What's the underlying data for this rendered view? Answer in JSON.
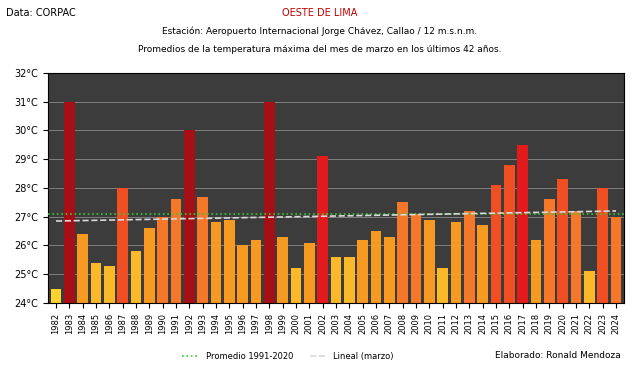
{
  "chart_data": {
    "type": "bar",
    "title": "OESTE DE LIMA",
    "subtitle": [
      "Estación: Aeropuerto Internacional Jorge Chávez, Callao / 12 m.s.n.m.",
      "Promedios de la temperatura máxima del mes de marzo en los últimos 42 años."
    ],
    "annotations": [
      "Data: CORPAC",
      "Elaborado: Ronald Mendoza"
    ],
    "categories": [
      "1982",
      "1983",
      "1984",
      "1985",
      "1986",
      "1987",
      "1988",
      "1989",
      "1990",
      "1991",
      "1992",
      "1993",
      "1994",
      "1995",
      "1996",
      "1997",
      "1998",
      "1999",
      "2000",
      "2001",
      "2002",
      "2003",
      "2004",
      "2005",
      "2006",
      "2007",
      "2008",
      "2009",
      "2010",
      "2011",
      "2012",
      "2013",
      "2014",
      "2015",
      "2016",
      "2017",
      "2018",
      "2019",
      "2020",
      "2021",
      "2022",
      "2023",
      "2024"
    ],
    "values": [
      24.5,
      31.0,
      26.4,
      25.4,
      25.3,
      28.0,
      25.8,
      26.6,
      27.0,
      27.6,
      30.0,
      27.7,
      26.8,
      26.9,
      26.0,
      26.2,
      31.0,
      26.3,
      25.2,
      26.1,
      29.1,
      25.6,
      25.6,
      26.2,
      26.5,
      26.3,
      27.5,
      27.1,
      26.9,
      25.2,
      26.8,
      27.2,
      26.7,
      28.1,
      28.8,
      29.5,
      26.2,
      27.6,
      28.3,
      27.2,
      25.1,
      28.0,
      27.0
    ],
    "colors": [
      "#fdd22e",
      "#a50f15",
      "#f79a22",
      "#fbb829",
      "#fbb829",
      "#f04e23",
      "#fbb829",
      "#f79a22",
      "#f4772a",
      "#f4772a",
      "#a50f15",
      "#f4772a",
      "#f79a22",
      "#f79a22",
      "#f79a22",
      "#f79a22",
      "#a50f15",
      "#f79a22",
      "#fbb829",
      "#f79a22",
      "#e31a1c",
      "#fbb829",
      "#fbb829",
      "#f79a22",
      "#f79a22",
      "#f79a22",
      "#f4772a",
      "#f4772a",
      "#f79a22",
      "#fbb829",
      "#f79a22",
      "#f4772a",
      "#f79a22",
      "#f04e23",
      "#f04e23",
      "#e31a1c",
      "#f79a22",
      "#f4772a",
      "#f04e23",
      "#f4772a",
      "#fbb829",
      "#f04e23",
      "#f4772a"
    ],
    "average": {
      "name": "Promedio 1991-2020",
      "value": 27.1,
      "color": "#33cc33",
      "line_style": "dotted"
    },
    "trend": {
      "name": "Lineal (marzo)",
      "start": 26.85,
      "end": 27.2,
      "color": "#d9d9d9",
      "line_style": "dashed"
    },
    "ylim": [
      24,
      32
    ],
    "yticks": [
      {
        "value": 24,
        "label": "24°C"
      },
      {
        "value": 25,
        "label": "25°C"
      },
      {
        "value": 26,
        "label": "26°C"
      },
      {
        "value": 27,
        "label": "27°C"
      },
      {
        "value": 28,
        "label": "28°C"
      },
      {
        "value": 29,
        "label": "29°C"
      },
      {
        "value": 30,
        "label": "30°C"
      },
      {
        "value": 31,
        "label": "31°C"
      },
      {
        "value": 32,
        "label": "32°C"
      }
    ],
    "grid": true,
    "legend": "lower center"
  }
}
